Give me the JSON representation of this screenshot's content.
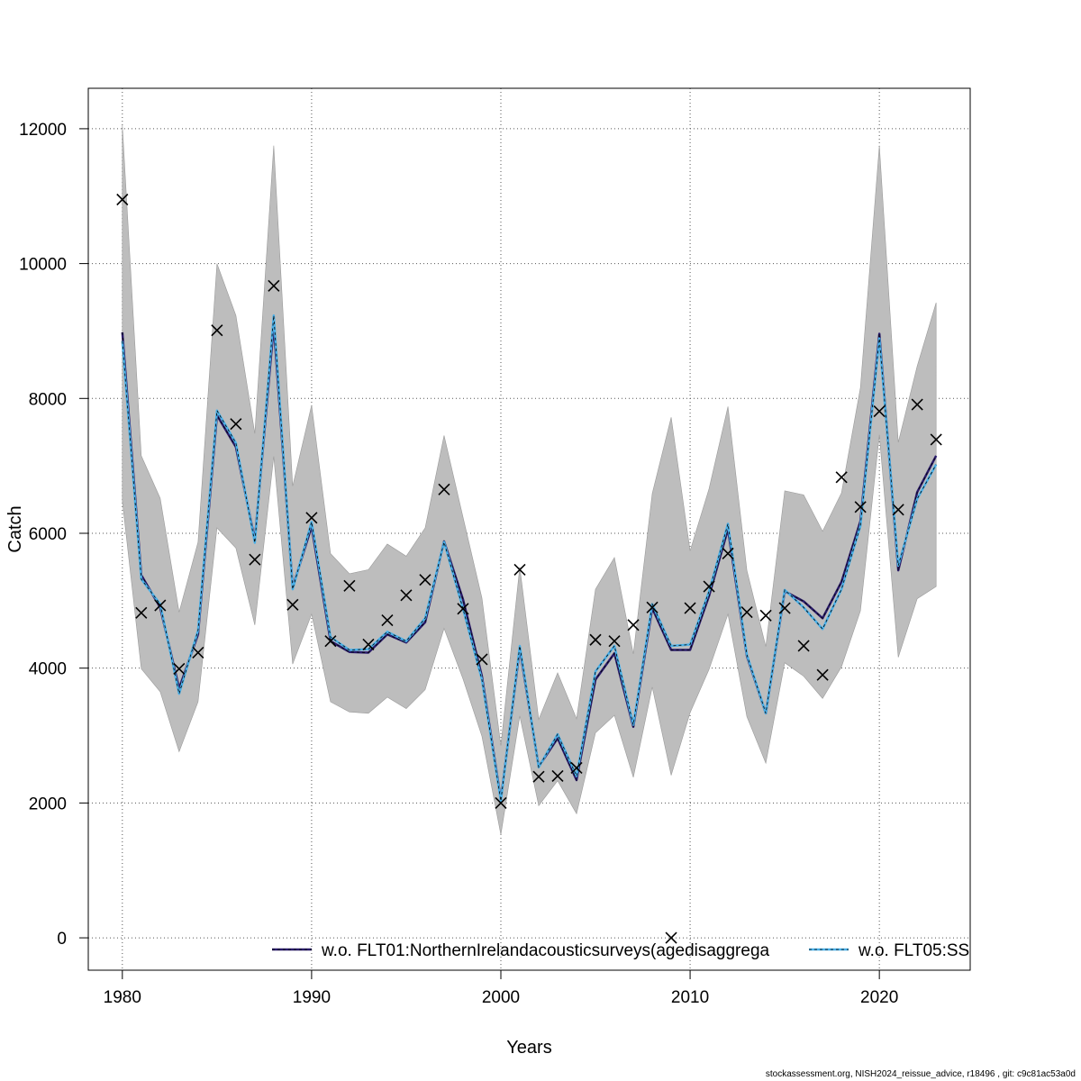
{
  "chart_data": {
    "type": "line",
    "xlabel": "Years",
    "ylabel": "Catch",
    "xlim": [
      1978.2,
      2024.8
    ],
    "ylim": [
      -480,
      12600
    ],
    "x_ticks": [
      1980,
      1990,
      2000,
      2010,
      2020
    ],
    "y_ticks": [
      0,
      2000,
      4000,
      6000,
      8000,
      10000,
      12000
    ],
    "grid": true,
    "legend_position": "bottom",
    "years": [
      1980,
      1981,
      1982,
      1983,
      1984,
      1985,
      1986,
      1987,
      1988,
      1989,
      1990,
      1991,
      1992,
      1993,
      1994,
      1995,
      1996,
      1997,
      1998,
      1999,
      2000,
      2001,
      2002,
      2003,
      2004,
      2005,
      2006,
      2007,
      2008,
      2009,
      2010,
      2011,
      2012,
      2013,
      2014,
      2015,
      2016,
      2017,
      2018,
      2019,
      2020,
      2021,
      2022,
      2023
    ],
    "observed": [
      10950,
      4820,
      4930,
      3990,
      4230,
      9010,
      7620,
      5610,
      9670,
      4940,
      6230,
      4400,
      5220,
      4350,
      4710,
      5080,
      5310,
      6650,
      4880,
      4130,
      2000,
      5460,
      2390,
      2400,
      2520,
      4420,
      4400,
      4640,
      4900,
      0,
      4890,
      5210,
      5700,
      4830,
      4780,
      4890,
      4330,
      3900,
      6830,
      6390,
      7810,
      6350,
      7910,
      7390
    ],
    "band": {
      "upper": [
        12050,
        7150,
        6520,
        4830,
        5870,
        10000,
        9230,
        7480,
        11750,
        6700,
        7900,
        5700,
        5400,
        5460,
        5840,
        5660,
        6080,
        7450,
        6240,
        5040,
        2850,
        5500,
        3240,
        3930,
        3250,
        5170,
        5640,
        4210,
        6590,
        7720,
        5740,
        6660,
        7880,
        5450,
        4320,
        6630,
        6570,
        6030,
        6600,
        8160,
        11750,
        7350,
        8480,
        9420
      ],
      "lower": [
        6480,
        3990,
        3650,
        2760,
        3500,
        6080,
        5780,
        4640,
        7140,
        4060,
        4800,
        3500,
        3350,
        3330,
        3570,
        3400,
        3680,
        4590,
        3840,
        2990,
        1530,
        3290,
        1960,
        2330,
        1840,
        3040,
        3300,
        2380,
        3720,
        2410,
        3340,
        3980,
        4800,
        3280,
        2590,
        4080,
        3880,
        3550,
        4020,
        4850,
        7460,
        4160,
        5030,
        5210
      ]
    },
    "series": [
      {
        "name": "w.o. FLT01:NorthernIrelandacousticsurveys(agedisaggrega",
        "color": "#2a1b6b",
        "values": [
          8980,
          5380,
          4900,
          3700,
          4500,
          7750,
          7280,
          5900,
          9080,
          5200,
          6100,
          4400,
          4240,
          4230,
          4500,
          4380,
          4680,
          5880,
          5020,
          3880,
          2050,
          4290,
          2540,
          2960,
          2340,
          3830,
          4220,
          3130,
          4890,
          4270,
          4270,
          5070,
          6060,
          4180,
          3330,
          5140,
          4990,
          4740,
          5280,
          6180,
          8960,
          5450,
          6610,
          7150
        ]
      },
      {
        "name": "w.o. FLT05:SS",
        "color": "#4ab0e8",
        "values": [
          8850,
          5320,
          4950,
          3620,
          4560,
          7820,
          7340,
          5860,
          9230,
          5170,
          6170,
          4460,
          4270,
          4280,
          4540,
          4400,
          4740,
          5870,
          4880,
          3830,
          2030,
          4330,
          2530,
          3020,
          2400,
          3950,
          4330,
          3160,
          4950,
          4330,
          4350,
          5140,
          6140,
          4200,
          3330,
          5160,
          4900,
          4580,
          5170,
          6110,
          8890,
          5520,
          6510,
          7020
        ]
      }
    ]
  },
  "footer_text": "stockassessment.org, NISH2024_reissue_advice, r18496 , git: c9c81ac53a0d"
}
